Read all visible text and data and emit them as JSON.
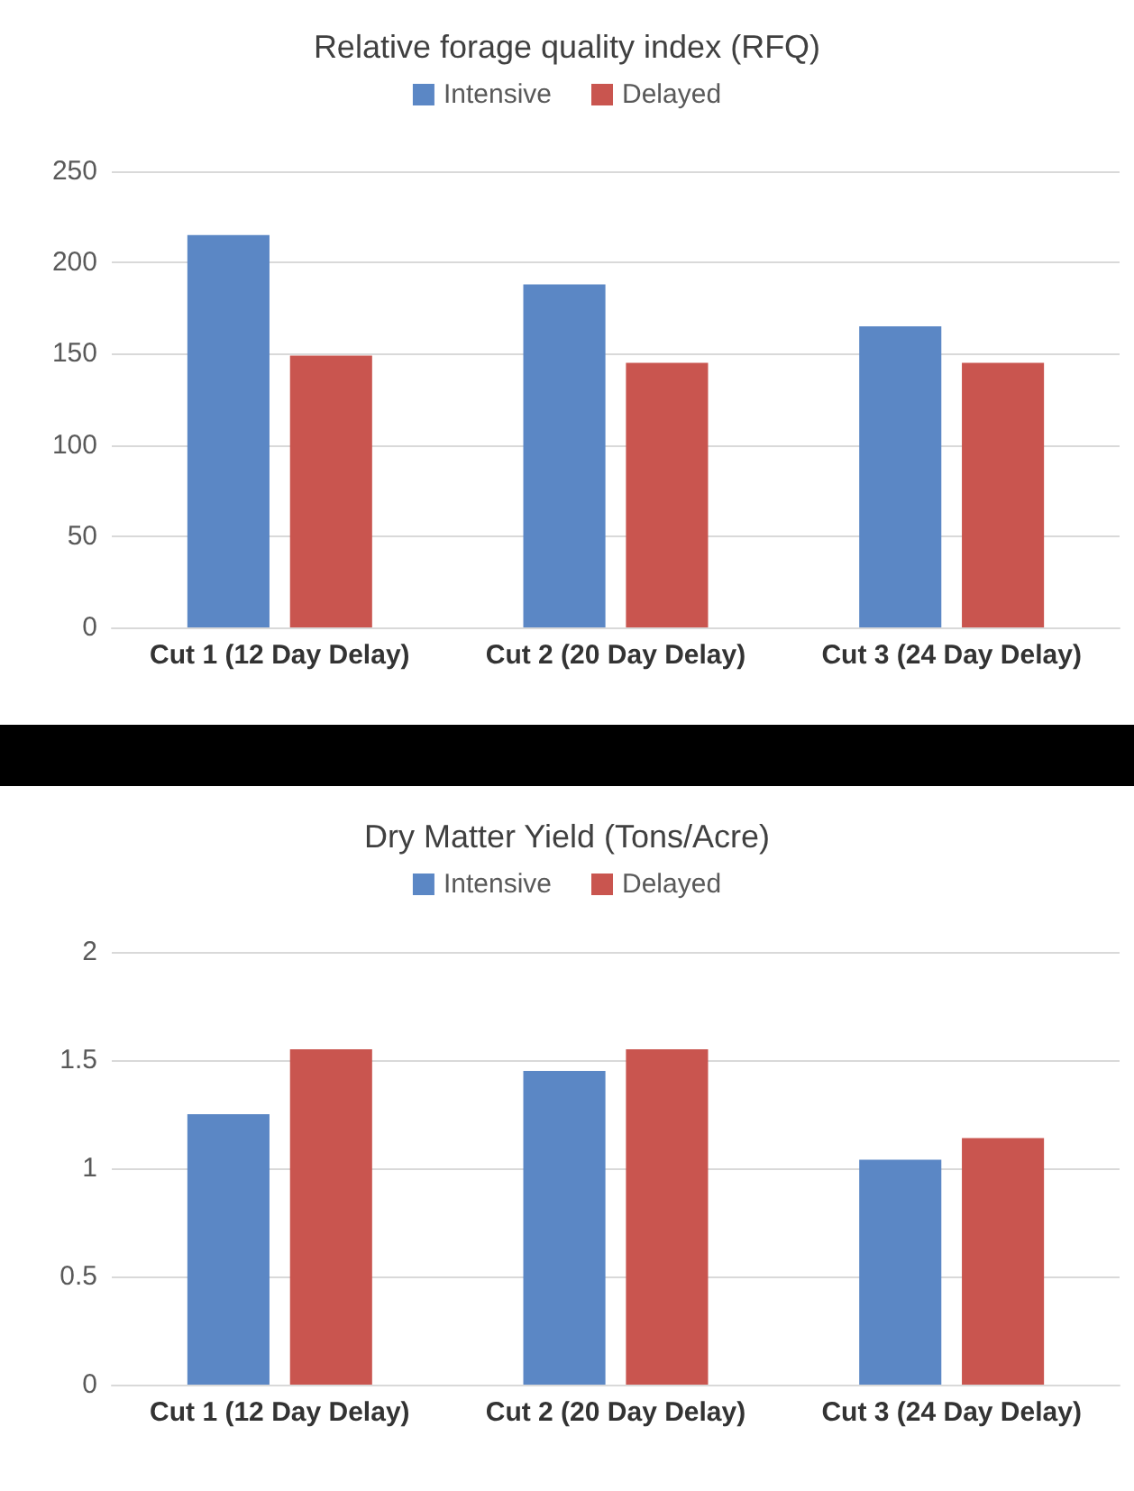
{
  "chart_data": [
    {
      "type": "bar",
      "title": "Relative forage quality index (RFQ)",
      "categories": [
        "Cut 1 (12 Day Delay)",
        "Cut 2 (20 Day Delay)",
        "Cut 3 (24 Day Delay)"
      ],
      "series": [
        {
          "name": "Intensive",
          "color": "#5b87c5",
          "values": [
            215,
            188,
            165
          ]
        },
        {
          "name": "Delayed",
          "color": "#c9554f",
          "values": [
            149,
            145,
            145
          ]
        }
      ],
      "ylim": [
        0,
        250
      ],
      "yticks": [
        0,
        50,
        100,
        150,
        200,
        250
      ],
      "grid": "y",
      "legend": "top"
    },
    {
      "type": "bar",
      "title": "Dry Matter Yield (Tons/Acre)",
      "categories": [
        "Cut 1 (12 Day Delay)",
        "Cut 2 (20 Day Delay)",
        "Cut 3 (24 Day Delay)"
      ],
      "series": [
        {
          "name": "Intensive",
          "color": "#5b87c5",
          "values": [
            1.25,
            1.45,
            1.04
          ]
        },
        {
          "name": "Delayed",
          "color": "#c9554f",
          "values": [
            1.55,
            1.55,
            1.14
          ]
        }
      ],
      "ylim": [
        0,
        2
      ],
      "yticks": [
        0,
        0.5,
        1,
        1.5,
        2
      ],
      "grid": "y",
      "legend": "top"
    }
  ]
}
